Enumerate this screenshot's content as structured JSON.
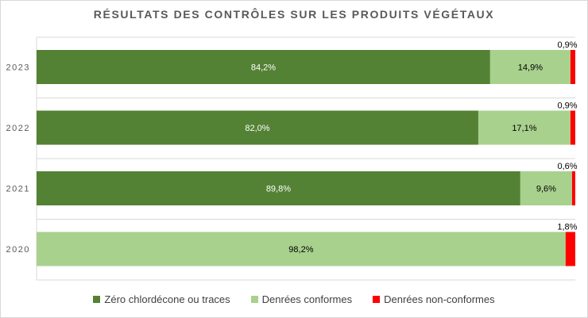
{
  "chart_data": {
    "type": "bar",
    "orientation": "horizontal",
    "stacked": true,
    "title": "RÉSULTATS DES CONTRÔLES SUR LES PRODUITS VÉGÉTAUX",
    "categories": [
      "2023",
      "2022",
      "2021",
      "2020"
    ],
    "series": [
      {
        "name": "Zéro chlordécone ou traces",
        "color": "#548235",
        "values": [
          84.2,
          82.0,
          89.8,
          0
        ],
        "labels": [
          "84,2%",
          "82,0%",
          "89,8%",
          ""
        ]
      },
      {
        "name": "Denrées conformes",
        "color": "#a9d18e",
        "values": [
          14.9,
          17.1,
          9.6,
          98.2
        ],
        "labels": [
          "14,9%",
          "17,1%",
          "9,6%",
          "98,2%"
        ]
      },
      {
        "name": "Denrées non-conformes",
        "color": "#ff0000",
        "values": [
          0.9,
          0.9,
          0.6,
          1.8
        ],
        "labels": [
          "0,9%",
          "0,9%",
          "0,6%",
          "1,8%"
        ]
      }
    ],
    "xlim": [
      0,
      100
    ],
    "grid": true,
    "legend_position": "bottom"
  }
}
